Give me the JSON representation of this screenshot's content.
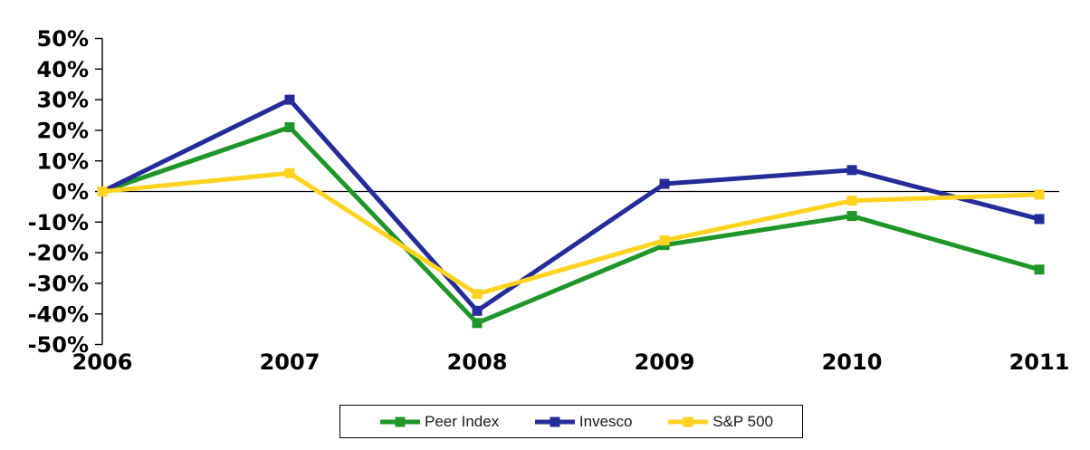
{
  "chart_data": {
    "type": "line",
    "title": "",
    "xlabel": "",
    "ylabel": "",
    "categories": [
      "2006",
      "2007",
      "2008",
      "2009",
      "2010",
      "2011"
    ],
    "series": [
      {
        "name": "Peer Index",
        "color": "#1E9628",
        "values": [
          0,
          21,
          -43,
          -17.5,
          -8,
          -25.5
        ]
      },
      {
        "name": "Invesco",
        "color": "#232C99",
        "values": [
          0,
          30,
          -39,
          2.5,
          7,
          -9
        ]
      },
      {
        "name": "S&P 500",
        "color": "#FFD320",
        "values": [
          0,
          6,
          -33.5,
          -16,
          -3,
          -1
        ]
      }
    ],
    "ylim": [
      -50,
      50
    ],
    "ytick_step": 10,
    "ytick_suffix": "%",
    "grid": false,
    "zero_line": true,
    "marker": "square",
    "legend_position": "bottom",
    "axis_color": "#000000"
  }
}
